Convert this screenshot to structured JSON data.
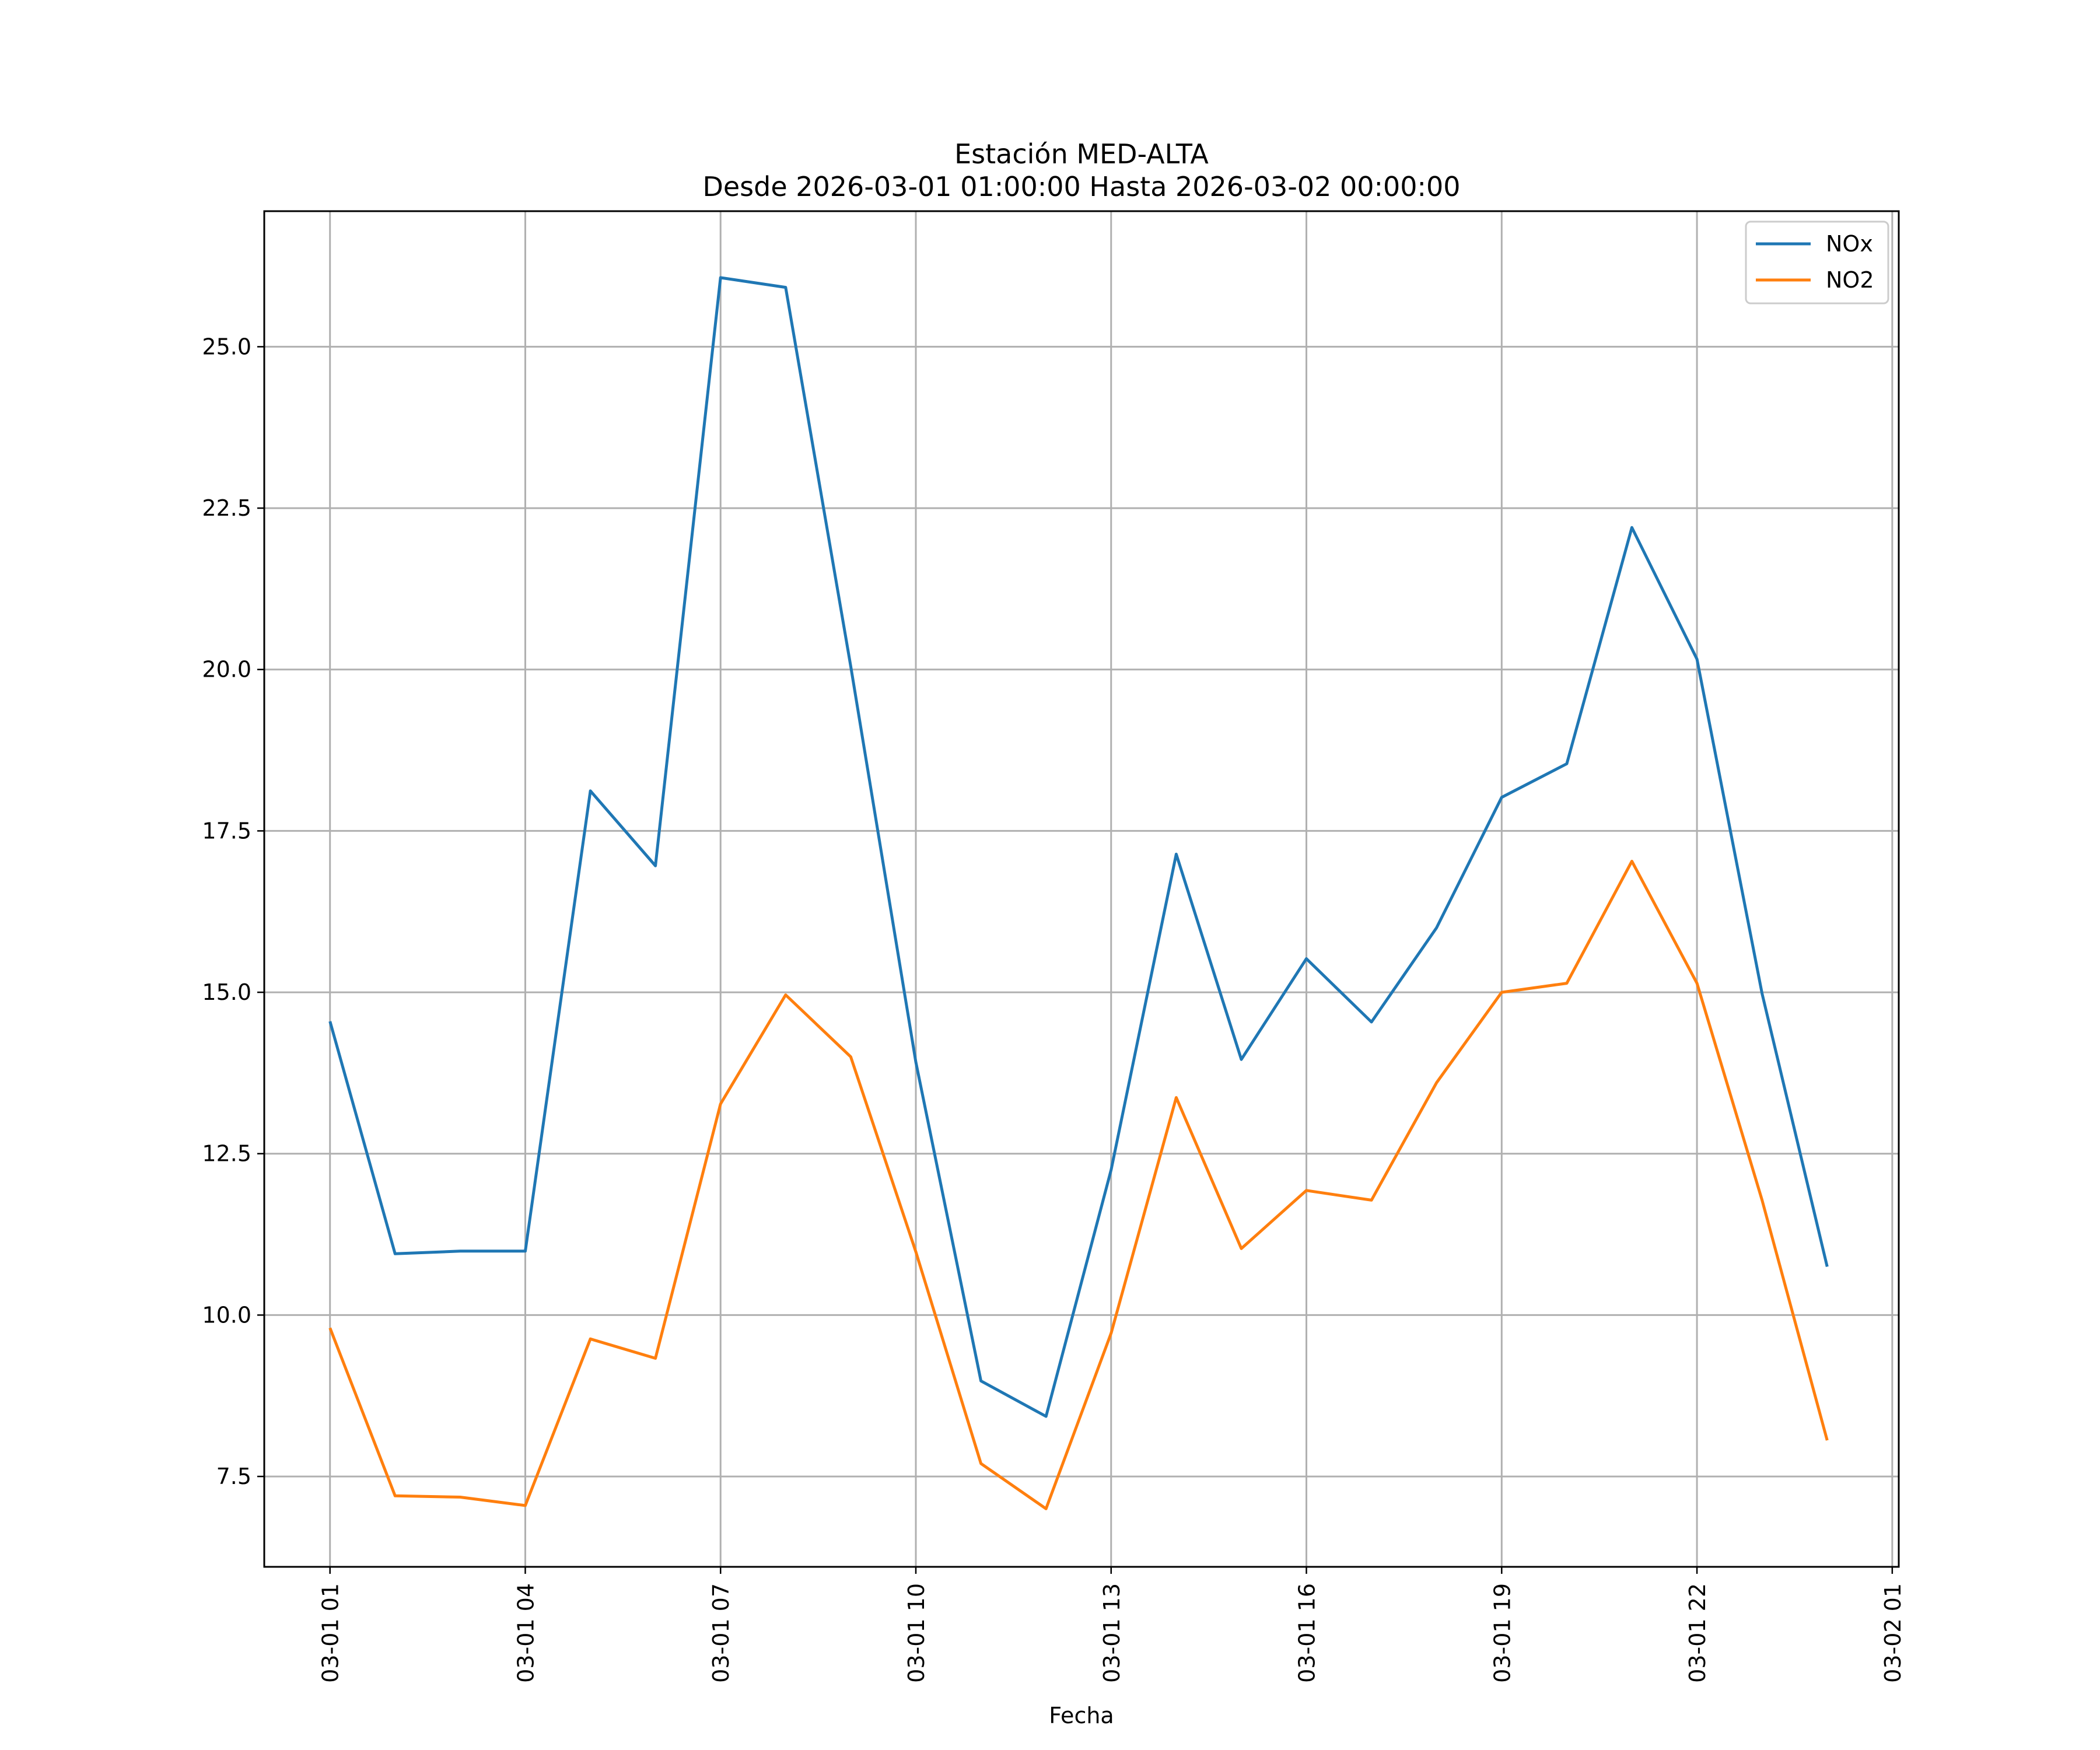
{
  "chart_data": {
    "type": "line",
    "title": [
      "Estación MED-ALTA",
      "Desde 2026-03-01 01:00:00 Hasta 2026-03-02 00:00:00"
    ],
    "xlabel": "Fecha",
    "ylabel": "",
    "x_hours": [
      1,
      2,
      3,
      4,
      5,
      6,
      7,
      8,
      9,
      10,
      11,
      12,
      13,
      14,
      15,
      16,
      17,
      18,
      19,
      20,
      21,
      22,
      23,
      24
    ],
    "xlim": [
      -0.01,
      25.1
    ],
    "ylim": [
      6.1,
      27.1
    ],
    "x_ticks": [
      1,
      4,
      7,
      10,
      13,
      16,
      19,
      22,
      25
    ],
    "x_tick_labels": [
      "03-01 01",
      "03-01 04",
      "03-01 07",
      "03-01 10",
      "03-01 13",
      "03-01 16",
      "03-01 19",
      "03-01 22",
      "03-02 01"
    ],
    "y_ticks": [
      7.5,
      10.0,
      12.5,
      15.0,
      17.5,
      20.0,
      22.5,
      25.0
    ],
    "y_tick_labels": [
      "7.5",
      "10.0",
      "12.5",
      "15.0",
      "17.5",
      "20.0",
      "22.5",
      "25.0"
    ],
    "grid": true,
    "legend_position": "top-right",
    "series": [
      {
        "name": "NOx",
        "color": "#1f77b4",
        "values": [
          14.55,
          10.95,
          10.99,
          10.99,
          18.12,
          16.96,
          26.07,
          25.92,
          20.05,
          13.92,
          8.98,
          8.43,
          12.25,
          17.14,
          13.96,
          15.52,
          14.54,
          16.0,
          18.02,
          18.54,
          22.2,
          20.16,
          14.98,
          10.75
        ]
      },
      {
        "name": "NO2",
        "color": "#ff7f0e",
        "values": [
          9.8,
          7.2,
          7.18,
          7.05,
          9.63,
          9.33,
          13.27,
          14.96,
          14.0,
          10.98,
          7.7,
          7.0,
          9.72,
          13.37,
          11.03,
          11.93,
          11.78,
          13.6,
          15.0,
          15.14,
          17.03,
          15.14,
          11.78,
          8.06
        ]
      }
    ]
  }
}
